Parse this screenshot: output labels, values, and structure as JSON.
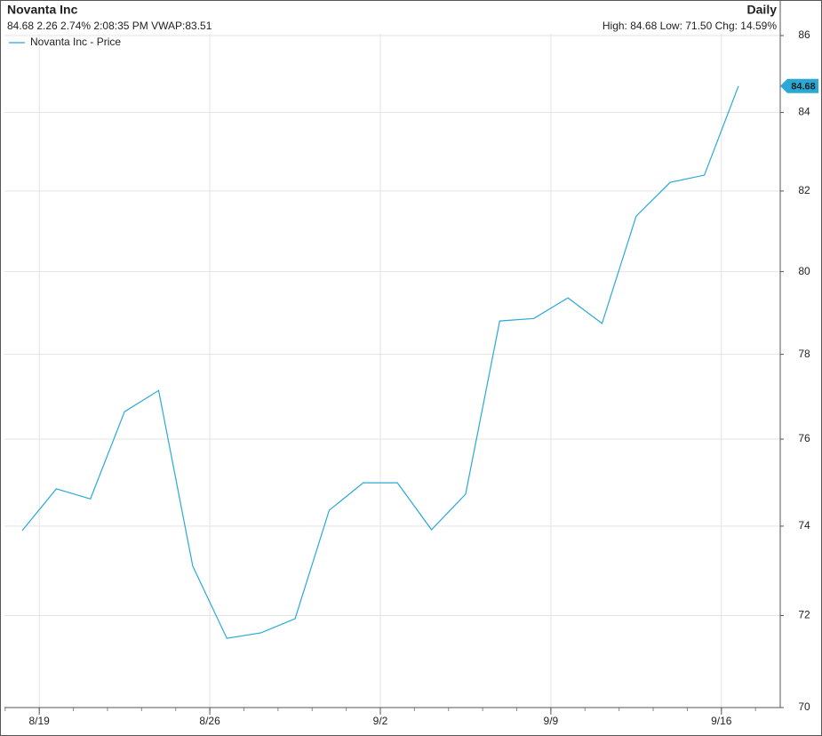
{
  "chart_data": {
    "type": "line",
    "title": "Novanta Inc",
    "subtitle": "84.68 2.26 2.74% 2:08:35 PM VWAP:83.51",
    "period": "Daily",
    "stats": "High: 84.68 Low: 71.50 Chg: 14.59%",
    "categories": [
      null,
      "8/19",
      null,
      null,
      null,
      null,
      "8/26",
      null,
      null,
      null,
      null,
      "9/2",
      null,
      null,
      null,
      null,
      "9/9",
      null,
      null,
      null,
      null,
      "9/16"
    ],
    "series": [
      {
        "name": "Novanta Inc - Price",
        "color": "#29a9d6",
        "values": [
          73.9,
          74.85,
          74.62,
          76.64,
          77.14,
          73.1,
          71.5,
          71.62,
          71.93,
          74.36,
          74.99,
          74.99,
          73.92,
          74.73,
          78.8,
          78.86,
          79.36,
          78.74,
          81.37,
          82.22,
          82.4,
          84.68
        ]
      }
    ],
    "ylim": [
      70,
      86
    ],
    "yticks": [
      70,
      72,
      74,
      76,
      78,
      80,
      82,
      84,
      86
    ],
    "log_scale": true,
    "grid": true,
    "legend": "top-left"
  }
}
